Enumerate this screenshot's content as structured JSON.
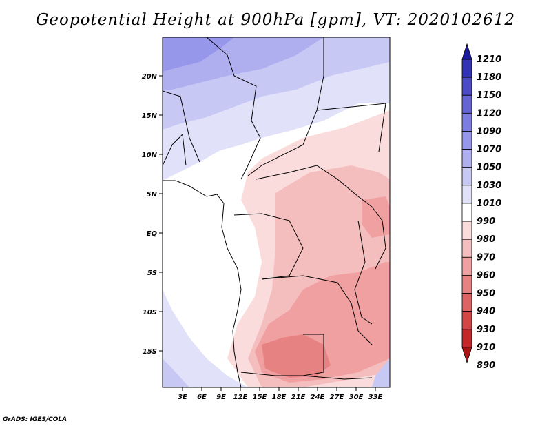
{
  "title": "Geopotential Height at 900hPa [gpm], VT: 2020102612",
  "credit": "GrADS: IGES/COLA",
  "map": {
    "lat_labels": [
      "20N",
      "15N",
      "10N",
      "5N",
      "EQ",
      "5S",
      "10S",
      "15S"
    ],
    "lon_labels": [
      "3E",
      "6E",
      "9E",
      "12E",
      "15E",
      "18E",
      "21E",
      "24E",
      "27E",
      "30E",
      "33E"
    ]
  },
  "colorbar": {
    "levels": [
      "1210",
      "1180",
      "1150",
      "1120",
      "1090",
      "1070",
      "1050",
      "1030",
      "1010",
      "990",
      "980",
      "970",
      "960",
      "950",
      "940",
      "930",
      "910",
      "890"
    ],
    "colors": [
      "#1a1a9c",
      "#3232b4",
      "#4b4bc8",
      "#6464d2",
      "#7d7de1",
      "#9696eb",
      "#afaff0",
      "#c8c8f5",
      "#e1e1fa",
      "#ffffff",
      "#fadcdc",
      "#f5bebe",
      "#f0a0a0",
      "#e68282",
      "#dc6464",
      "#d24646",
      "#c32828",
      "#aa1414"
    ]
  }
}
